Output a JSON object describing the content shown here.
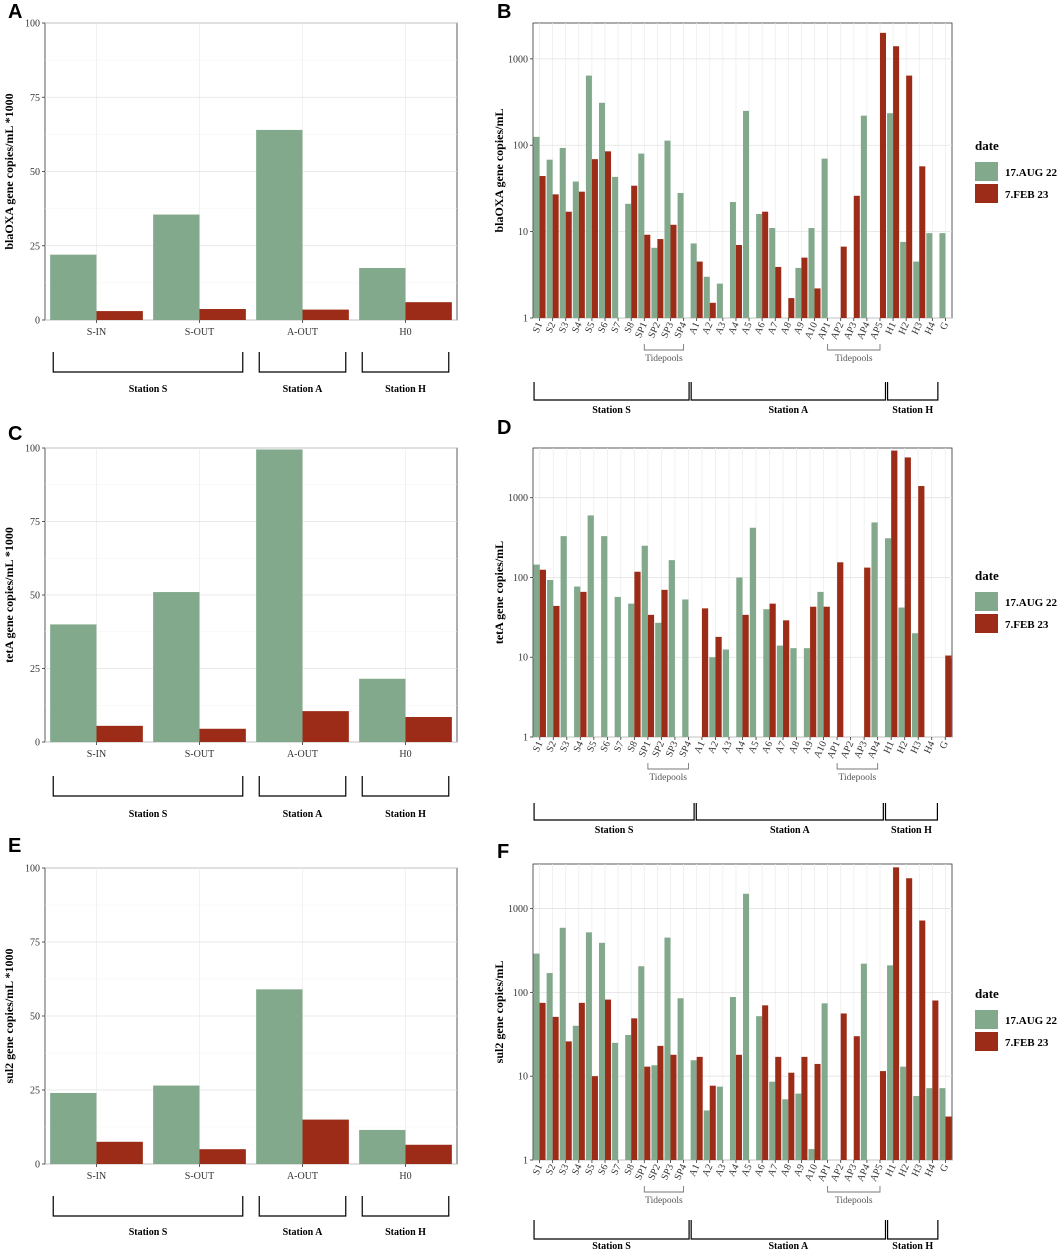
{
  "colors": {
    "aug": "#82a98c",
    "feb": "#9c2c17"
  },
  "chart_data": [
    {
      "panel": "A",
      "type": "bar",
      "scale": "linear",
      "ylabel": "blaOXA gene copies/mL *1000",
      "ylim": [
        0,
        100
      ],
      "yticks": [
        "0",
        "25",
        "50",
        "75",
        "100"
      ],
      "categories": [
        "S-IN",
        "S-OUT",
        "A-OUT",
        "H0"
      ],
      "series": [
        {
          "name": "17.AUG 22",
          "values": [
            22,
            35.5,
            64,
            17.5
          ]
        },
        {
          "name": "7.FEB 23",
          "values": [
            3,
            3.7,
            3.5,
            6
          ]
        }
      ],
      "groups": [
        {
          "label": "Station S",
          "from": "S-IN",
          "to": "S-OUT"
        },
        {
          "label": "Station A",
          "from": "A-OUT",
          "to": "A-OUT"
        },
        {
          "label": "Station H",
          "from": "H0",
          "to": "H0"
        }
      ]
    },
    {
      "panel": "B",
      "type": "bar",
      "scale": "log",
      "ylabel": "blaOXA gene copies/mL",
      "ylim": [
        1,
        2600
      ],
      "yticks": [
        "1",
        "10",
        "100",
        "1000"
      ],
      "categories": [
        "S1",
        "S2",
        "S3",
        "S4",
        "S5",
        "S6",
        "S7",
        "S8",
        "SP1",
        "SP2",
        "SP3",
        "SP4",
        "A1",
        "A2",
        "A3",
        "A4",
        "A5",
        "A6",
        "A7",
        "A8",
        "A9",
        "A10",
        "AP1",
        "AP2",
        "AP3",
        "AP4",
        "AP5",
        "H1",
        "H2",
        "H3",
        "H4",
        "G"
      ],
      "series": [
        {
          "name": "17.AUG 22",
          "values": [
            125,
            68,
            93,
            38,
            640,
            310,
            43,
            21,
            80,
            6.5,
            113,
            28,
            7.3,
            3,
            2.5,
            22,
            250,
            16,
            11,
            0,
            3.8,
            11,
            70,
            0,
            0,
            220,
            0,
            235,
            7.6,
            4.5,
            9.6,
            9.6
          ]
        },
        {
          "name": "7.FEB 23",
          "values": [
            44,
            27,
            17,
            29,
            69,
            85,
            0,
            34,
            9.2,
            8.2,
            12,
            0,
            4.5,
            1.5,
            0,
            7,
            0,
            17,
            3.9,
            1.7,
            5,
            2.2,
            0,
            6.7,
            26,
            0,
            2000,
            1400,
            640,
            57,
            0,
            0
          ]
        }
      ],
      "groups": [
        {
          "label": "Station S",
          "from": "S1",
          "to": "SP4"
        },
        {
          "label": "Station A",
          "from": "A1",
          "to": "AP5"
        },
        {
          "label": "Station H",
          "from": "H1",
          "to": "H4"
        }
      ],
      "subgroups": [
        {
          "label": "Tidepools",
          "from": "SP1",
          "to": "SP4"
        },
        {
          "label": "Tidepools",
          "from": "AP1",
          "to": "AP5"
        }
      ],
      "legend": {
        "title": "date",
        "items": [
          "17.AUG 22",
          "7.FEB 23"
        ]
      }
    },
    {
      "panel": "C",
      "type": "bar",
      "scale": "linear",
      "ylabel": "tetA gene copies/mL *1000",
      "ylim": [
        0,
        100
      ],
      "yticks": [
        "0",
        "25",
        "50",
        "75",
        "100"
      ],
      "categories": [
        "S-IN",
        "S-OUT",
        "A-OUT",
        "H0"
      ],
      "series": [
        {
          "name": "17.AUG 22",
          "values": [
            40,
            51,
            99.5,
            21.5
          ]
        },
        {
          "name": "7.FEB 23",
          "values": [
            5.5,
            4.5,
            10.5,
            8.5
          ]
        }
      ],
      "groups": [
        {
          "label": "Station S",
          "from": "S-IN",
          "to": "S-OUT"
        },
        {
          "label": "Station A",
          "from": "A-OUT",
          "to": "A-OUT"
        },
        {
          "label": "Station H",
          "from": "H0",
          "to": "H0"
        }
      ]
    },
    {
      "panel": "D",
      "type": "bar",
      "scale": "log",
      "ylabel": "tetA gene copies/mL",
      "ylim": [
        1,
        4200
      ],
      "yticks": [
        "1",
        "10",
        "100",
        "1000"
      ],
      "categories": [
        "S1",
        "S2",
        "S3",
        "S4",
        "S5",
        "S6",
        "S7",
        "S8",
        "SP1",
        "SP2",
        "SP3",
        "SP4",
        "A1",
        "A2",
        "A3",
        "A4",
        "A5",
        "A6",
        "A7",
        "A8",
        "A9",
        "A10",
        "AP1",
        "AP2",
        "AP3",
        "AP4",
        "H1",
        "H2",
        "H3",
        "H4",
        "G"
      ],
      "series": [
        {
          "name": "17.AUG 22",
          "values": [
            145,
            93,
            330,
            77,
            600,
            330,
            57,
            47,
            250,
            27,
            165,
            53,
            0,
            10,
            12.5,
            100,
            420,
            40,
            14,
            13,
            13,
            66,
            0,
            0,
            0,
            490,
            310,
            42,
            20,
            0,
            0
          ]
        },
        {
          "name": "7.FEB 23",
          "values": [
            125,
            44,
            0,
            66,
            0,
            0,
            0,
            118,
            34,
            70,
            0,
            0,
            41,
            18,
            0,
            34,
            0,
            47,
            29,
            0,
            43,
            43,
            155,
            0,
            133,
            0,
            3900,
            3200,
            1400,
            0,
            10.5
          ]
        }
      ],
      "groups": [
        {
          "label": "Station S",
          "from": "S1",
          "to": "SP4"
        },
        {
          "label": "Station A",
          "from": "A1",
          "to": "AP4"
        },
        {
          "label": "Station H",
          "from": "H1",
          "to": "H4"
        }
      ],
      "subgroups": [
        {
          "label": "Tidepools",
          "from": "SP1",
          "to": "SP4"
        },
        {
          "label": "Tidepools",
          "from": "AP1",
          "to": "AP4"
        }
      ],
      "legend": {
        "title": "date",
        "items": [
          "17.AUG 22",
          "7.FEB 23"
        ]
      }
    },
    {
      "panel": "E",
      "type": "bar",
      "scale": "linear",
      "ylabel": "sul2 gene copies/mL *1000",
      "ylim": [
        0,
        100
      ],
      "yticks": [
        "0",
        "25",
        "50",
        "75",
        "100"
      ],
      "categories": [
        "S-IN",
        "S-OUT",
        "A-OUT",
        "H0"
      ],
      "series": [
        {
          "name": "17.AUG 22",
          "values": [
            24,
            26.5,
            59,
            11.5
          ]
        },
        {
          "name": "7.FEB 23",
          "values": [
            7.5,
            5,
            15,
            6.5
          ]
        }
      ],
      "groups": [
        {
          "label": "Station S",
          "from": "S-IN",
          "to": "S-OUT"
        },
        {
          "label": "Station A",
          "from": "A-OUT",
          "to": "A-OUT"
        },
        {
          "label": "Station H",
          "from": "H0",
          "to": "H0"
        }
      ]
    },
    {
      "panel": "F",
      "type": "bar",
      "scale": "log",
      "ylabel": "sul2 gene copies/mL",
      "ylim": [
        1,
        3400
      ],
      "yticks": [
        "1",
        "10",
        "100",
        "1000"
      ],
      "categories": [
        "S1",
        "S2",
        "S3",
        "S4",
        "S5",
        "S6",
        "S7",
        "S8",
        "SP1",
        "SP2",
        "SP3",
        "SP4",
        "A1",
        "A2",
        "A3",
        "A4",
        "A5",
        "A6",
        "A7",
        "A8",
        "A9",
        "A10",
        "AP1",
        "AP2",
        "AP3",
        "AP4",
        "AP5",
        "H1",
        "H2",
        "H3",
        "H4",
        "G"
      ],
      "series": [
        {
          "name": "17.AUG 22",
          "values": [
            290,
            170,
            590,
            40,
            520,
            390,
            25,
            31,
            205,
            13.5,
            450,
            85,
            15.5,
            3.9,
            7.5,
            88,
            1500,
            52,
            8.6,
            5.3,
            6.2,
            1.35,
            74,
            0,
            0,
            220,
            0,
            210,
            13,
            5.8,
            7.2,
            7.2
          ]
        },
        {
          "name": "7.FEB 23",
          "values": [
            75,
            51,
            26,
            75,
            10,
            82,
            0,
            49,
            13,
            23,
            18,
            0,
            17,
            7.7,
            0,
            18,
            0,
            70,
            17,
            11,
            17,
            14,
            0,
            56,
            30,
            0,
            11.5,
            3100,
            2300,
            720,
            80,
            3.3
          ]
        }
      ],
      "groups": [
        {
          "label": "Station S",
          "from": "S1",
          "to": "SP4"
        },
        {
          "label": "Station A",
          "from": "A1",
          "to": "AP5"
        },
        {
          "label": "Station H",
          "from": "H1",
          "to": "H4"
        }
      ],
      "subgroups": [
        {
          "label": "Tidepools",
          "from": "SP1",
          "to": "SP4"
        },
        {
          "label": "Tidepools",
          "from": "AP1",
          "to": "AP5"
        }
      ],
      "legend": {
        "title": "date",
        "items": [
          "17.AUG 22",
          "7.FEB 23"
        ]
      }
    }
  ]
}
